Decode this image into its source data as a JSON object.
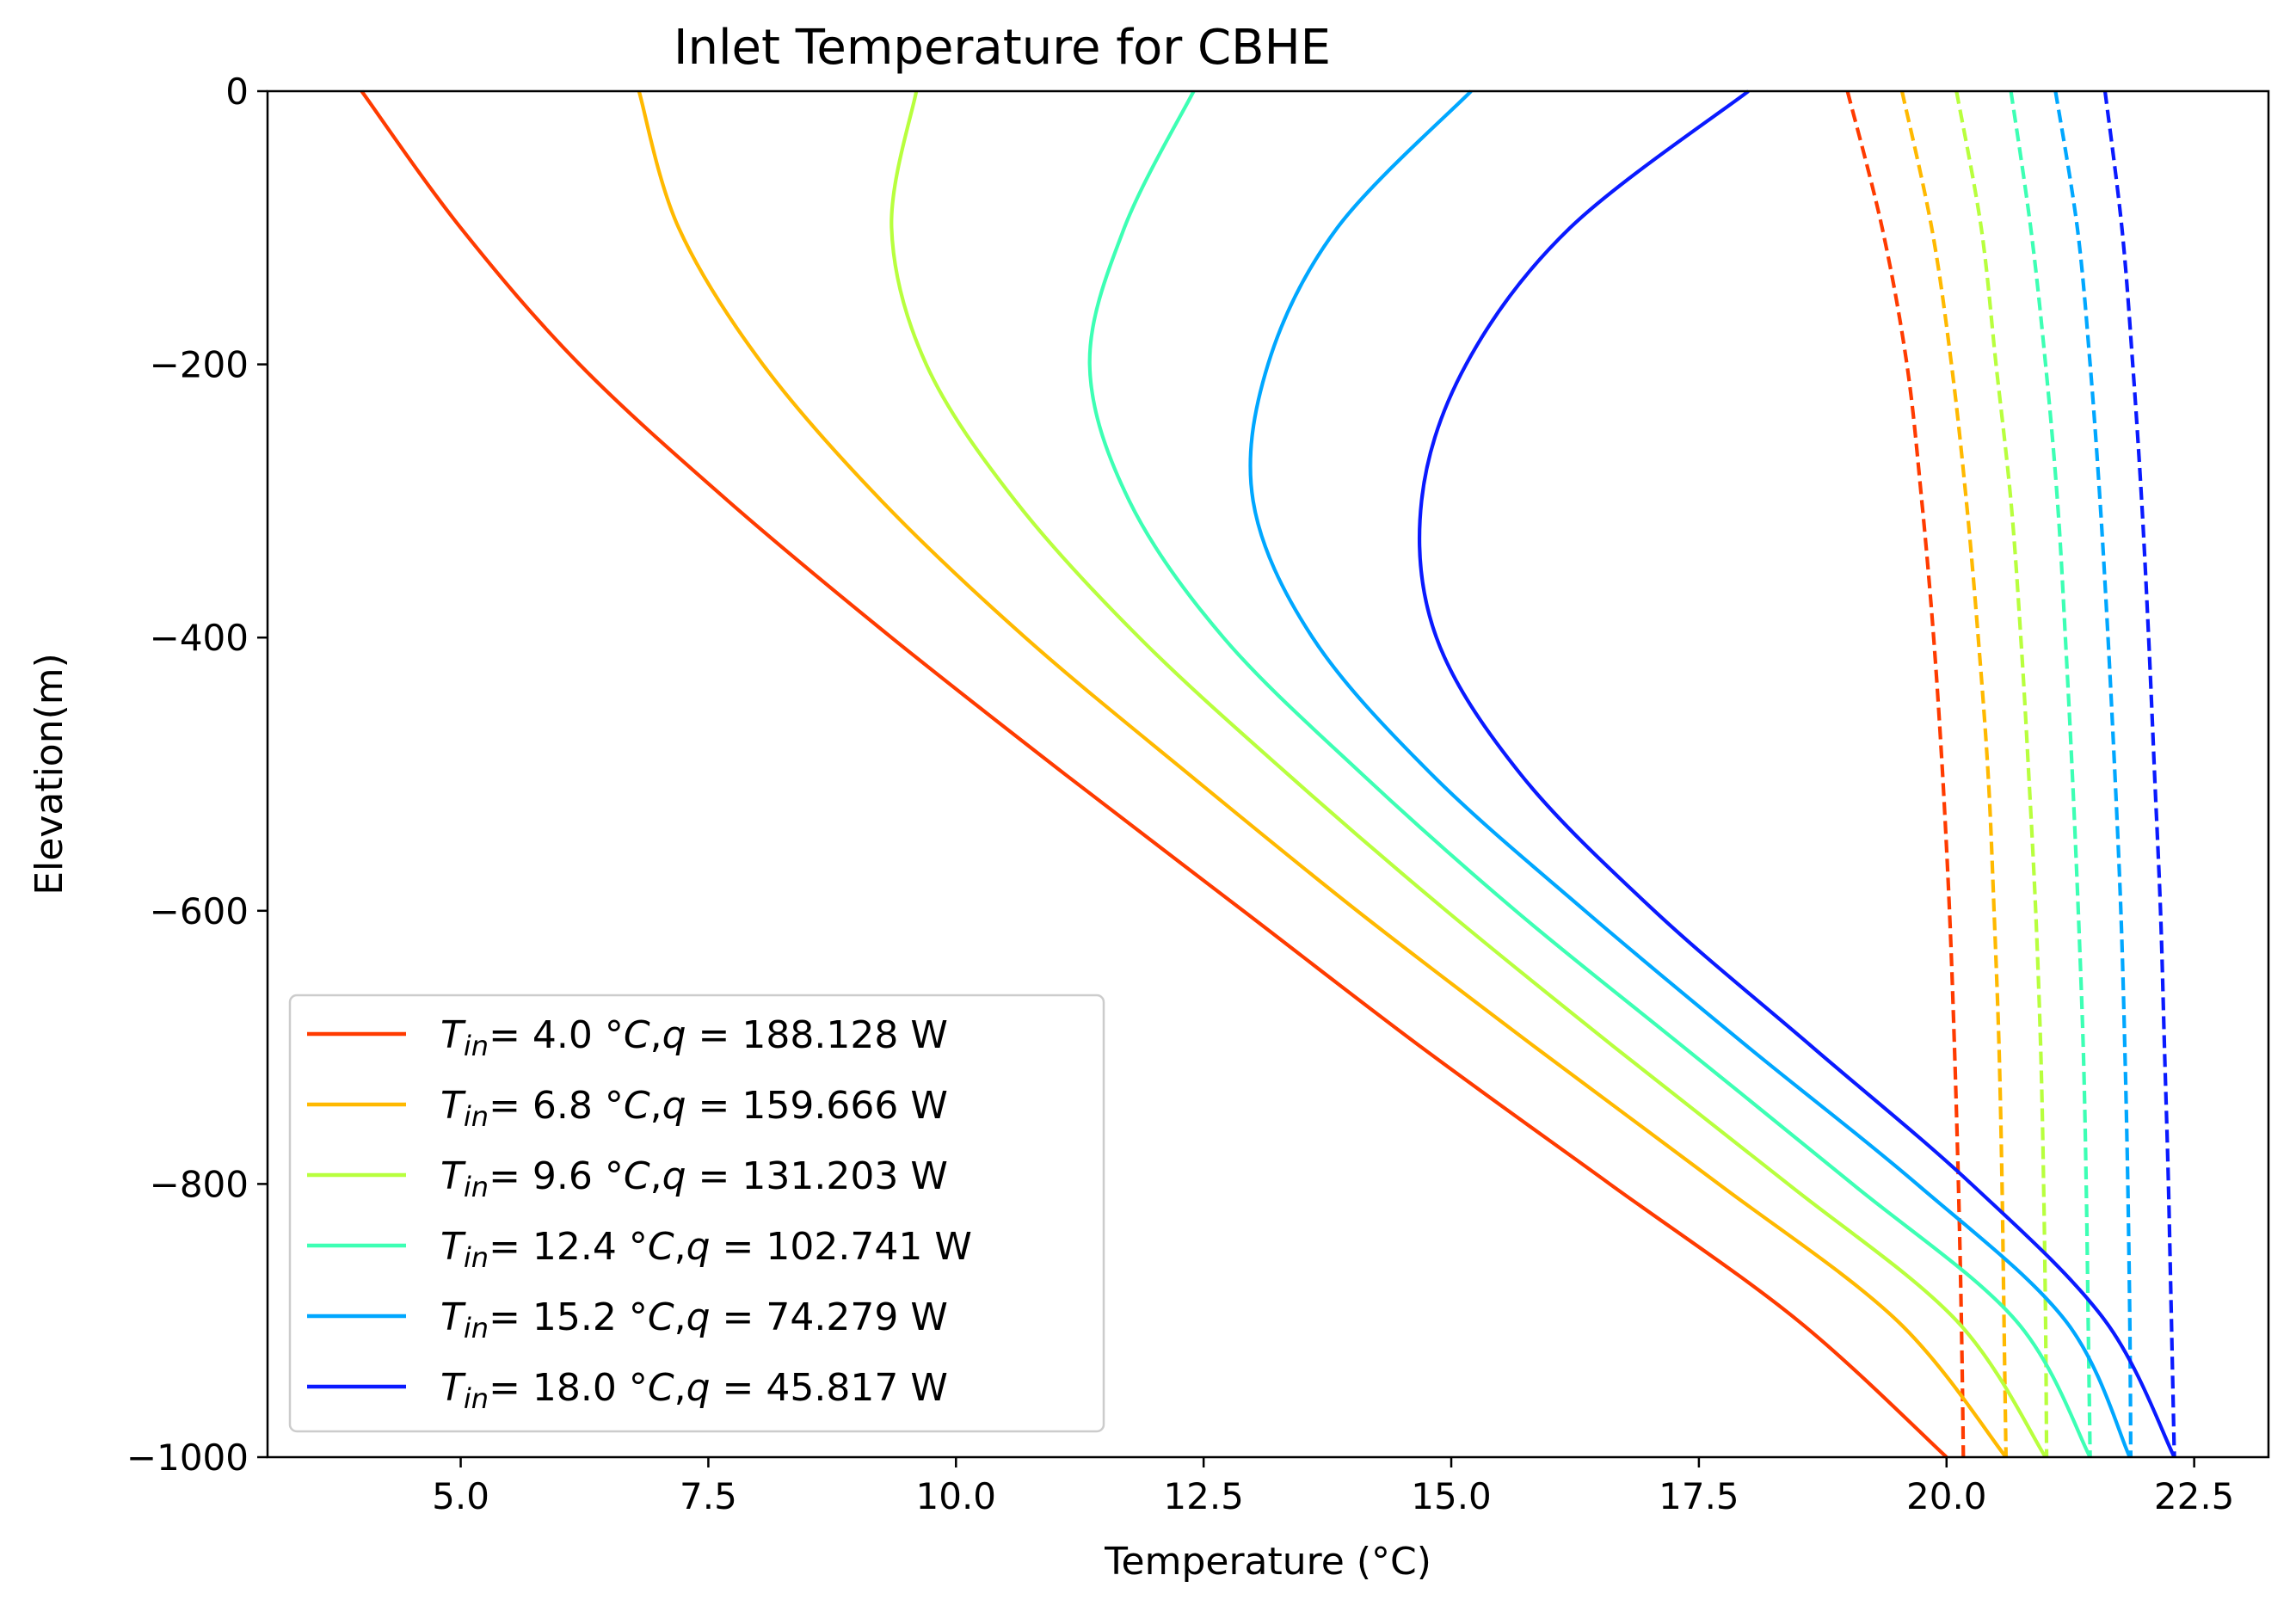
{
  "chart_data": {
    "type": "line",
    "title": "Inlet Temperature for CBHE",
    "xlabel": "Temperature (°C)",
    "ylabel": "Elevation(m)",
    "xlim": [
      3.05,
      23.25
    ],
    "ylim": [
      -1000,
      0
    ],
    "x_ticks": [
      "5.0",
      "7.5",
      "10.0",
      "12.5",
      "15.0",
      "17.5",
      "20.0",
      "22.5"
    ],
    "y_ticks": [
      "0",
      "−200",
      "−400",
      "−600",
      "−800",
      "−1000"
    ],
    "x_tick_values": [
      5.0,
      7.5,
      10.0,
      12.5,
      15.0,
      17.5,
      20.0,
      22.5
    ],
    "y_tick_values": [
      0,
      -200,
      -400,
      -600,
      -800,
      -1000
    ],
    "grid": false,
    "legend_position": "lower-left",
    "elevation": [
      0,
      -100,
      -200,
      -300,
      -400,
      -500,
      -600,
      -700,
      -800,
      -900,
      -1000
    ],
    "series": [
      {
        "name": "T_in= 4.0 °C,q = 188.128 W",
        "legend": {
          "T": "T",
          "sub": "in",
          "mid": "= 4.0 °",
          "C": "C",
          "comma": ",",
          "q": "q",
          "rest": " = 188.128 W"
        },
        "color": "#ff3b00",
        "inlet": [
          4.0,
          5.0,
          6.2,
          7.7,
          9.35,
          11.1,
          12.9,
          14.7,
          16.6,
          18.5,
          20.0
        ],
        "outlet": [
          19.0,
          19.35,
          19.6,
          19.75,
          19.87,
          19.96,
          20.03,
          20.08,
          20.12,
          20.15,
          20.17
        ]
      },
      {
        "name": "T_in= 6.8 °C,q = 159.666 W",
        "legend": {
          "T": "T",
          "sub": "in",
          "mid": "= 6.8 °",
          "C": "C",
          "comma": ",",
          "q": "q",
          "rest": " = 159.666 W"
        },
        "color": "#ffb900",
        "inlet": [
          6.8,
          7.2,
          8.05,
          9.25,
          10.7,
          12.35,
          14.05,
          15.85,
          17.7,
          19.5,
          20.6
        ],
        "outlet": [
          19.55,
          19.85,
          20.05,
          20.2,
          20.32,
          20.42,
          20.48,
          20.53,
          20.56,
          20.58,
          20.6
        ]
      },
      {
        "name": "T_in= 9.6 °C,q = 131.203 W",
        "legend": {
          "T": "T",
          "sub": "in",
          "mid": "= 9.6 °",
          "C": "C",
          "comma": ",",
          "q": "q",
          "rest": " = 131.203 W"
        },
        "color": "#b8ff3e",
        "inlet": [
          9.6,
          9.35,
          9.7,
          10.6,
          11.85,
          13.35,
          14.95,
          16.65,
          18.4,
          20.1,
          21.0
        ],
        "outlet": [
          20.1,
          20.35,
          20.5,
          20.65,
          20.75,
          20.83,
          20.9,
          20.95,
          20.98,
          21.0,
          21.01
        ]
      },
      {
        "name": "T_in= 12.4 °C,q = 102.741 W",
        "legend": {
          "T": "T",
          "sub": "in",
          "mid": "= 12.4 °",
          "C": "C",
          "comma": ",",
          "q": "q",
          "rest": " = 102.741 W"
        },
        "color": "#3dffb4",
        "inlet": [
          12.4,
          11.7,
          11.35,
          11.75,
          12.7,
          14.1,
          15.65,
          17.35,
          19.05,
          20.7,
          21.45
        ],
        "outlet": [
          20.65,
          20.85,
          21.0,
          21.12,
          21.2,
          21.27,
          21.33,
          21.38,
          21.41,
          21.43,
          21.45
        ]
      },
      {
        "name": "T_in= 15.2 °C,q = 74.279 W",
        "legend": {
          "T": "T",
          "sub": "in",
          "mid": "= 15.2 °",
          "C": "C",
          "comma": ",",
          "q": "q",
          "rest": " = 74.279 W"
        },
        "color": "#00a7ff",
        "inlet": [
          15.2,
          13.85,
          13.15,
          13.0,
          13.6,
          14.8,
          16.35,
          18.0,
          19.7,
          21.2,
          21.85
        ],
        "outlet": [
          21.1,
          21.32,
          21.45,
          21.55,
          21.63,
          21.7,
          21.76,
          21.8,
          21.83,
          21.85,
          21.86
        ]
      },
      {
        "name": "T_in= 18.0 °C,q = 45.817 W",
        "legend": {
          "T": "T",
          "sub": "in",
          "mid": "= 18.0 °",
          "C": "C",
          "comma": ",",
          "q": "q",
          "rest": " = 45.817 W"
        },
        "color": "#0a1aff",
        "inlet": [
          18.0,
          16.2,
          15.15,
          14.7,
          14.85,
          15.7,
          17.05,
          18.65,
          20.25,
          21.6,
          22.3
        ],
        "outlet": [
          21.6,
          21.77,
          21.88,
          21.97,
          22.04,
          22.1,
          22.16,
          22.2,
          22.24,
          22.27,
          22.3
        ]
      }
    ]
  }
}
